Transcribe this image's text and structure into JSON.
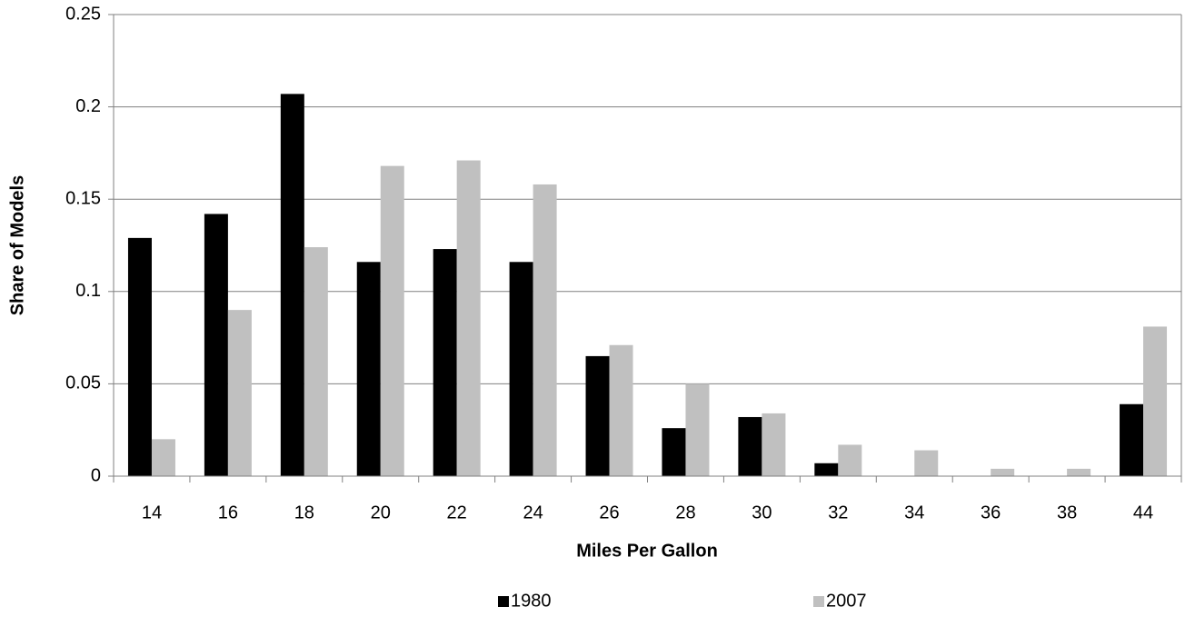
{
  "chart_data": {
    "type": "bar",
    "x_label": "Miles Per Gallon",
    "y_label": "Share of Models",
    "categories": [
      "14",
      "16",
      "18",
      "20",
      "22",
      "24",
      "26",
      "28",
      "30",
      "32",
      "34",
      "36",
      "38",
      "44"
    ],
    "series": [
      {
        "name": "1980",
        "color": "#000000",
        "values": [
          0.129,
          0.142,
          0.207,
          0.116,
          0.123,
          0.116,
          0.065,
          0.026,
          0.032,
          0.007,
          0,
          0,
          0,
          0.039
        ]
      },
      {
        "name": "2007",
        "color": "#c0c0c0",
        "values": [
          0.02,
          0.09,
          0.124,
          0.168,
          0.171,
          0.158,
          0.071,
          0.05,
          0.034,
          0.017,
          0.014,
          0.004,
          0.004,
          0.081
        ]
      }
    ],
    "ylim": [
      0,
      0.25
    ],
    "yticks": [
      0,
      0.05,
      0.1,
      0.15,
      0.2,
      0.25
    ],
    "grid": true,
    "legend": "bottom"
  }
}
